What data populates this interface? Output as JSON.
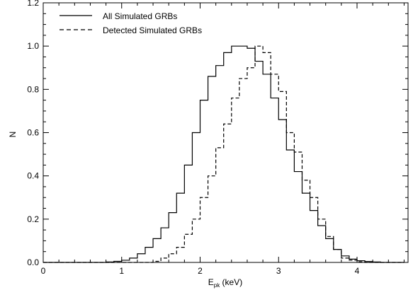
{
  "chart_data": {
    "type": "line",
    "step": true,
    "xlabel_main": "E",
    "xlabel_sub": "pk",
    "xlabel_unit": " (keV)",
    "ylabel": "N",
    "xlim": [
      0,
      4.65
    ],
    "ylim": [
      0,
      1.2
    ],
    "x_ticks": [
      "0",
      "1",
      "2",
      "3",
      "4"
    ],
    "y_ticks": [
      "0.0",
      "0.2",
      "0.4",
      "0.6",
      "0.8",
      "1.0",
      "1.2"
    ],
    "bin_width": 0.1,
    "bin_starts": [
      0.0,
      0.1,
      0.2,
      0.3,
      0.4,
      0.5,
      0.6,
      0.7,
      0.8,
      0.9,
      1.0,
      1.1,
      1.2,
      1.3,
      1.4,
      1.5,
      1.6,
      1.7,
      1.8,
      1.9,
      2.0,
      2.1,
      2.2,
      2.3,
      2.4,
      2.5,
      2.6,
      2.7,
      2.8,
      2.9,
      3.0,
      3.1,
      3.2,
      3.3,
      3.4,
      3.5,
      3.6,
      3.7,
      3.8,
      3.9,
      4.0,
      4.1,
      4.2,
      4.3,
      4.4,
      4.5
    ],
    "legend_position": "top-left",
    "series": [
      {
        "name": "All Simulated GRBs",
        "style": "solid",
        "values": [
          0,
          0,
          0,
          0,
          0,
          0,
          0,
          0,
          0.002,
          0.005,
          0.01,
          0.02,
          0.04,
          0.07,
          0.11,
          0.16,
          0.23,
          0.32,
          0.45,
          0.6,
          0.75,
          0.86,
          0.91,
          0.97,
          1.0,
          1.0,
          0.99,
          0.93,
          0.87,
          0.76,
          0.66,
          0.52,
          0.42,
          0.32,
          0.24,
          0.17,
          0.11,
          0.06,
          0.03,
          0.015,
          0.008,
          0.004,
          0.002,
          0,
          0,
          0
        ]
      },
      {
        "name": "Detected Simulated GRBs",
        "style": "dashed",
        "values": [
          0,
          0,
          0,
          0,
          0,
          0,
          0,
          0,
          0,
          0,
          0,
          0,
          0,
          0,
          0.005,
          0.02,
          0.04,
          0.07,
          0.13,
          0.2,
          0.3,
          0.4,
          0.53,
          0.64,
          0.76,
          0.85,
          0.9,
          1.0,
          0.97,
          0.87,
          0.79,
          0.6,
          0.51,
          0.38,
          0.3,
          0.2,
          0.12,
          0.06,
          0.02,
          0.01,
          0.003,
          0,
          0,
          0,
          0,
          0
        ]
      }
    ]
  },
  "colors": {
    "axis": "#000000",
    "line": "#000000",
    "background": "#ffffff"
  }
}
